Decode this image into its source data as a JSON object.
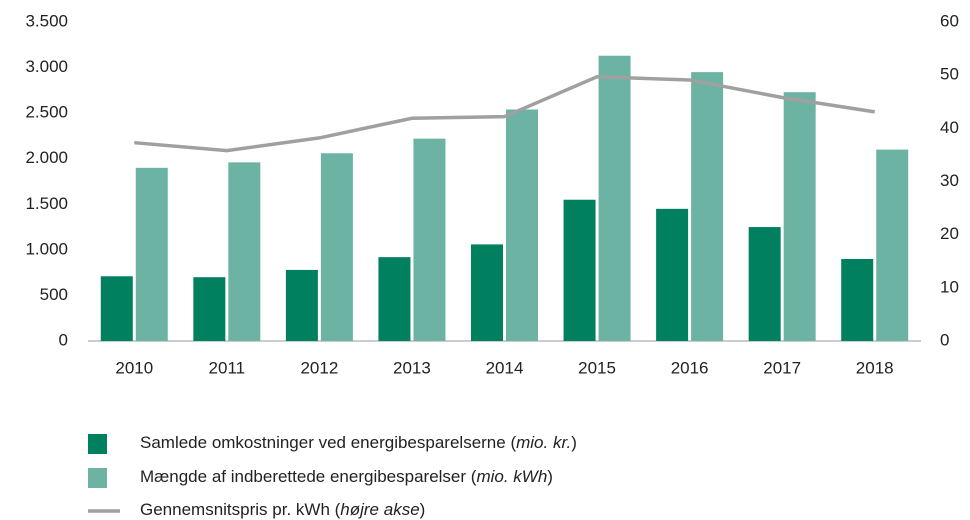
{
  "chart_data": {
    "type": "bar",
    "categories": [
      "2010",
      "2011",
      "2012",
      "2013",
      "2014",
      "2015",
      "2016",
      "2017",
      "2018"
    ],
    "series": [
      {
        "name": "Samlede omkostninger ved energibesparelserne (mio. kr.)",
        "color": "#00805f",
        "type": "bar",
        "values": [
          710,
          700,
          780,
          920,
          1060,
          1550,
          1450,
          1250,
          900
        ]
      },
      {
        "name": "Mængde af indberettede energibesparelser (mio. kWh)",
        "color": "#6db3a3",
        "type": "bar",
        "values": [
          1900,
          1960,
          2060,
          2220,
          2540,
          3130,
          2950,
          2730,
          2100
        ]
      },
      {
        "name": "Gennemsnitspris pr. kWh (højre akse)",
        "color": "#a0a0a0",
        "type": "line",
        "axis": "y2",
        "values": [
          37.3,
          35.8,
          38.2,
          41.9,
          42.2,
          49.7,
          49.1,
          45.8,
          43.1
        ]
      }
    ],
    "ylim": [
      0,
      3500
    ],
    "yticks": [
      0,
      500,
      {
        "value": 1000,
        "label": "1.000"
      },
      {
        "value": 1500,
        "label": "1.500"
      },
      {
        "value": 2000,
        "label": "2.000"
      },
      {
        "value": 2500,
        "label": "2.500"
      },
      {
        "value": 3000,
        "label": "3.000"
      },
      {
        "value": 3500,
        "label": "3.500"
      }
    ],
    "y2lim": [
      0,
      60
    ],
    "y2ticks": [
      0,
      10,
      20,
      30,
      40,
      50,
      60
    ],
    "grid": false
  }
}
